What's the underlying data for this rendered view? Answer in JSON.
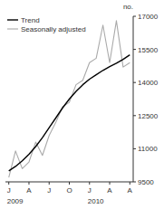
{
  "chart_data": {
    "type": "line",
    "y_label": "no.",
    "categories": [
      "J",
      null,
      null,
      "A",
      null,
      null,
      "J",
      null,
      null,
      "O",
      null,
      null,
      "J",
      null,
      null,
      "A",
      null,
      null,
      "A"
    ],
    "series": [
      {
        "name": "Trend",
        "color": "#000000",
        "values": [
          10000,
          10200,
          10450,
          10750,
          11100,
          11500,
          11950,
          12400,
          12850,
          13250,
          13600,
          13900,
          14150,
          14350,
          14550,
          14720,
          14870,
          15050,
          15250
        ]
      },
      {
        "name": "Seasonally adjusted",
        "color": "#aaaaaa",
        "values": [
          9700,
          10900,
          10100,
          10400,
          11300,
          10700,
          11600,
          12200,
          12900,
          13100,
          13900,
          14100,
          14900,
          15100,
          16600,
          14900,
          16800,
          14700,
          14900
        ]
      }
    ],
    "ylim": [
      9500,
      17000
    ],
    "yticks": [
      9500,
      11000,
      12500,
      14000,
      15500,
      17000
    ],
    "annotations": [
      {
        "text": "2009",
        "x": 0
      },
      {
        "text": "2010",
        "x": 12
      }
    ],
    "legend": "upper left",
    "grid": false
  }
}
